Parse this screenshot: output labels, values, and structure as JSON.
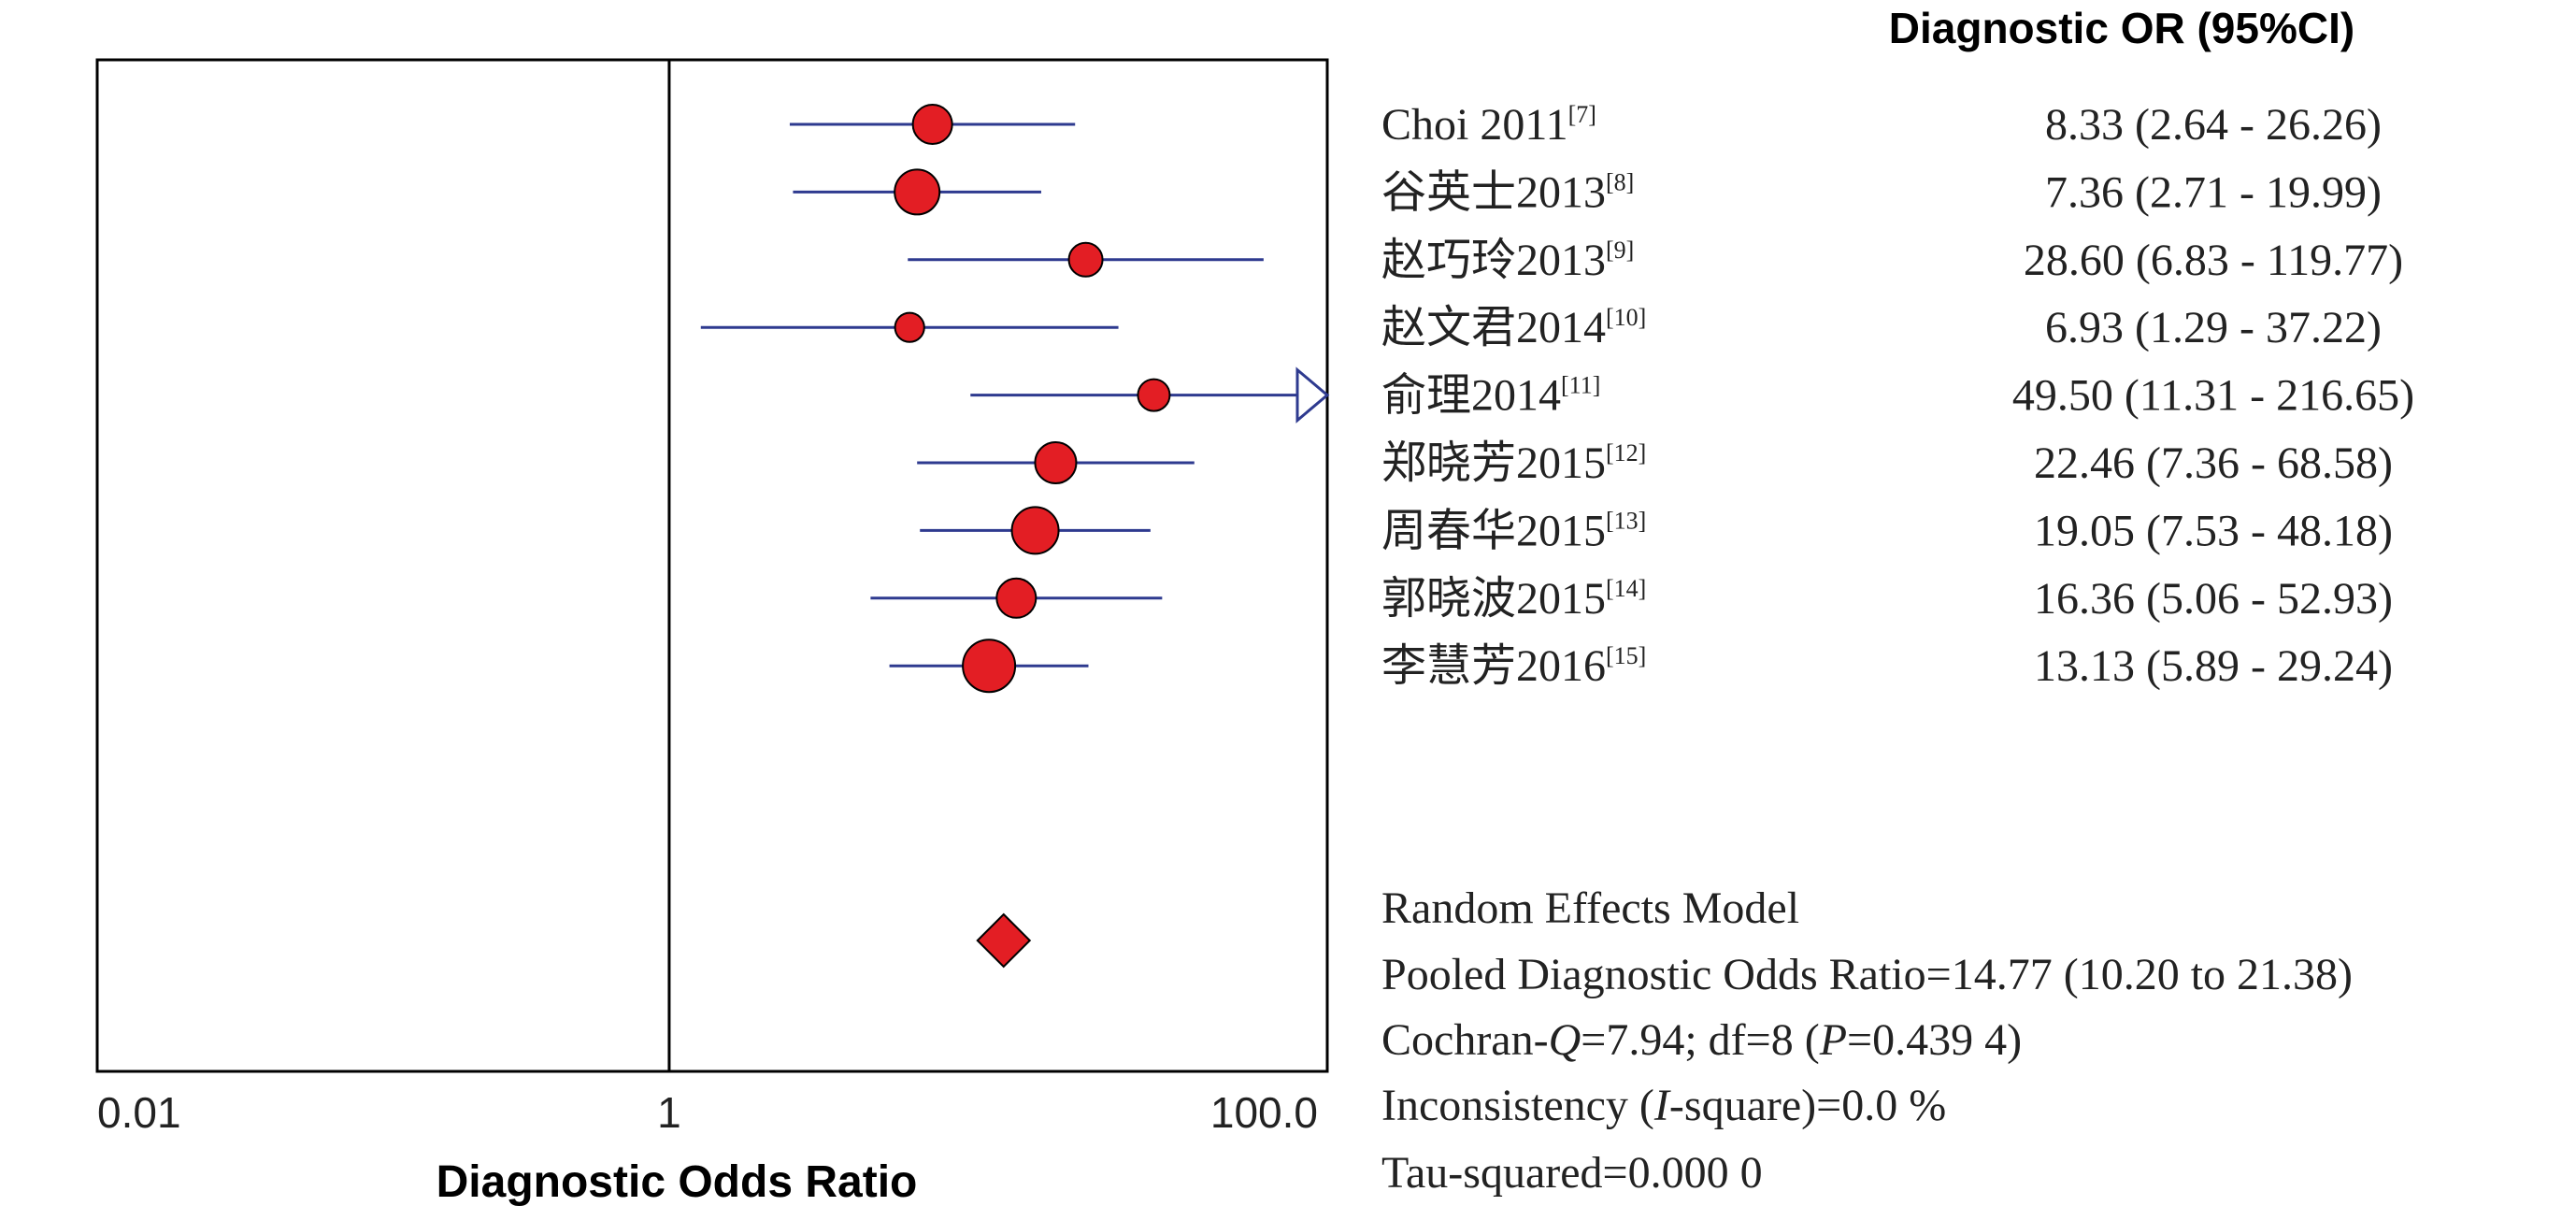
{
  "chart_data": {
    "type": "forest",
    "xlabel": "Diagnostic Odds Ratio",
    "x_scale": "log",
    "xlim": [
      0.01,
      200
    ],
    "x_ticks": [
      {
        "value": 0.01,
        "label": "0.01"
      },
      {
        "value": 1,
        "label": "1"
      },
      {
        "value": 100,
        "label": "100.0"
      }
    ],
    "reference_line": 1,
    "column_header": "Diagnostic OR (95%CI)",
    "colors": {
      "marker": "#e31e24",
      "ci_line": "#2e3a8f",
      "arrow": "#2e3a8f",
      "frame": "#000000"
    },
    "studies": [
      {
        "name": "Choi 2011",
        "ref": "[7]",
        "or": 8.33,
        "lower": 2.64,
        "upper": 26.26,
        "ci_text": "8.33 (2.64 - 26.26)",
        "weight": 1.05
      },
      {
        "name": "谷英士2013",
        "ref": "[8]",
        "or": 7.36,
        "lower": 2.71,
        "upper": 19.99,
        "ci_text": "7.36 (2.71 - 19.99)",
        "weight": 1.2
      },
      {
        "name": "赵巧玲2013",
        "ref": "[9]",
        "or": 28.6,
        "lower": 6.83,
        "upper": 119.77,
        "ci_text": "28.60 (6.83 - 119.77)",
        "weight": 0.9
      },
      {
        "name": "赵文君2014",
        "ref": "[10]",
        "or": 6.93,
        "lower": 1.29,
        "upper": 37.22,
        "ci_text": "6.93 (1.29 - 37.22)",
        "weight": 0.78
      },
      {
        "name": "俞理2014",
        "ref": "[11]",
        "or": 49.5,
        "lower": 11.31,
        "upper": 216.65,
        "ci_text": "49.50 (11.31 - 216.65)",
        "weight": 0.85
      },
      {
        "name": "郑晓芳2015",
        "ref": "[12]",
        "or": 22.46,
        "lower": 7.36,
        "upper": 68.58,
        "ci_text": "22.46 (7.36 - 68.58)",
        "weight": 1.1
      },
      {
        "name": "周春华2015",
        "ref": "[13]",
        "or": 19.05,
        "lower": 7.53,
        "upper": 48.18,
        "ci_text": "19.05 (7.53 - 48.18)",
        "weight": 1.25
      },
      {
        "name": "郭晓波2015",
        "ref": "[14]",
        "or": 16.36,
        "lower": 5.06,
        "upper": 52.93,
        "ci_text": "16.36 (5.06 - 52.93)",
        "weight": 1.05
      },
      {
        "name": "李慧芳2016",
        "ref": "[15]",
        "or": 13.13,
        "lower": 5.89,
        "upper": 29.24,
        "ci_text": "13.13 (5.89 - 29.24)",
        "weight": 1.4
      }
    ],
    "pooled": {
      "or": 14.77,
      "lower": 10.2,
      "upper": 21.38
    },
    "summary": {
      "model": "Random Effects Model",
      "pooled_text": "Pooled Diagnostic Odds Ratio=14.77 (10.20 to 21.38)",
      "cochran": {
        "pre": "Cochran-",
        "q": "Q",
        "mid": "=7.94; df=8 (",
        "p": "P",
        "post": "=0.439 4)"
      },
      "inconsistency": {
        "pre": "Inconsistency (",
        "i": "I",
        "post": "-square)=0.0 %"
      },
      "tau": "Tau-squared=0.000 0"
    }
  }
}
